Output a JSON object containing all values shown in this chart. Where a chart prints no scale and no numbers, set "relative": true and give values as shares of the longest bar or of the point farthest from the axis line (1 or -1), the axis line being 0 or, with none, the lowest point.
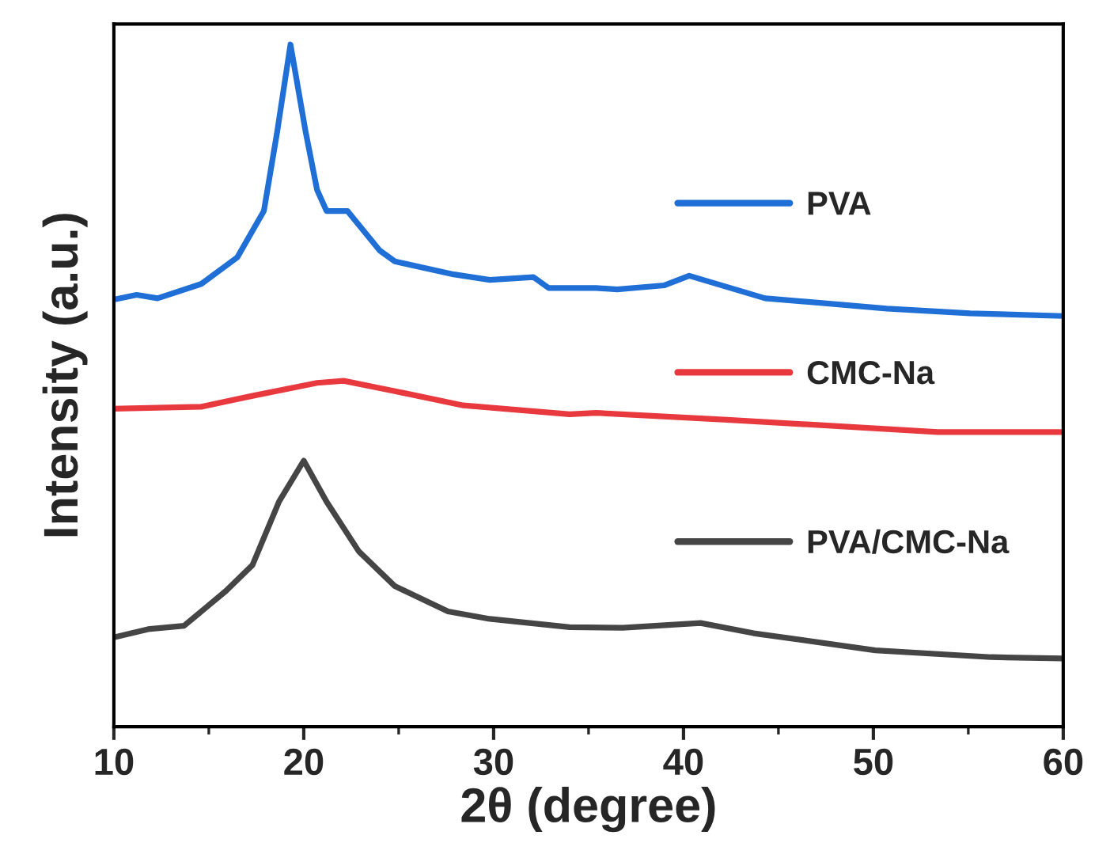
{
  "chart_data": {
    "type": "line",
    "relative": true,
    "xlabel": "2θ (degree)",
    "ylabel": "Intensity (a.u.)",
    "xlim": [
      10,
      60
    ],
    "xticks": [
      10,
      20,
      30,
      40,
      50,
      60
    ],
    "legend": "right",
    "grid": false,
    "marker": "none",
    "line_style": "solid",
    "series": [
      {
        "name": "PVA",
        "color": "#1f6fd6",
        "x": [
          10,
          11.2,
          12.3,
          14.6,
          16.5,
          17.9,
          18.6,
          19.3,
          20.1,
          20.7,
          21.2,
          22.3,
          24,
          24.8,
          27.9,
          29.8,
          32.1,
          32.9,
          35.4,
          36.5,
          39,
          40.3,
          44.3,
          50.7,
          55.1,
          60
        ],
        "values": [
          0.626,
          0.633,
          0.628,
          0.649,
          0.688,
          0.756,
          0.872,
          1.0,
          0.872,
          0.787,
          0.756,
          0.756,
          0.698,
          0.682,
          0.663,
          0.655,
          0.659,
          0.643,
          0.643,
          0.641,
          0.647,
          0.661,
          0.628,
          0.613,
          0.606,
          0.602
        ]
      },
      {
        "name": "CMC-Na",
        "color": "#e8393f",
        "x": [
          10,
          14.6,
          17.3,
          20.7,
          22.1,
          24.6,
          28.4,
          34,
          35.4,
          42.3,
          53.4,
          60
        ],
        "values": [
          0.466,
          0.469,
          0.485,
          0.504,
          0.507,
          0.493,
          0.471,
          0.458,
          0.46,
          0.45,
          0.432,
          0.432
        ]
      },
      {
        "name": "PVA/CMC-Na",
        "color": "#454545",
        "x": [
          10,
          11.8,
          13.7,
          15.9,
          17.3,
          18.7,
          20,
          21.2,
          22.9,
          24.8,
          27.6,
          29.8,
          34,
          36.8,
          40.9,
          43.7,
          50.1,
          56.2,
          60
        ],
        "values": [
          0.131,
          0.143,
          0.148,
          0.199,
          0.237,
          0.33,
          0.39,
          0.33,
          0.257,
          0.206,
          0.169,
          0.158,
          0.146,
          0.145,
          0.152,
          0.137,
          0.112,
          0.102,
          0.1
        ]
      }
    ]
  }
}
